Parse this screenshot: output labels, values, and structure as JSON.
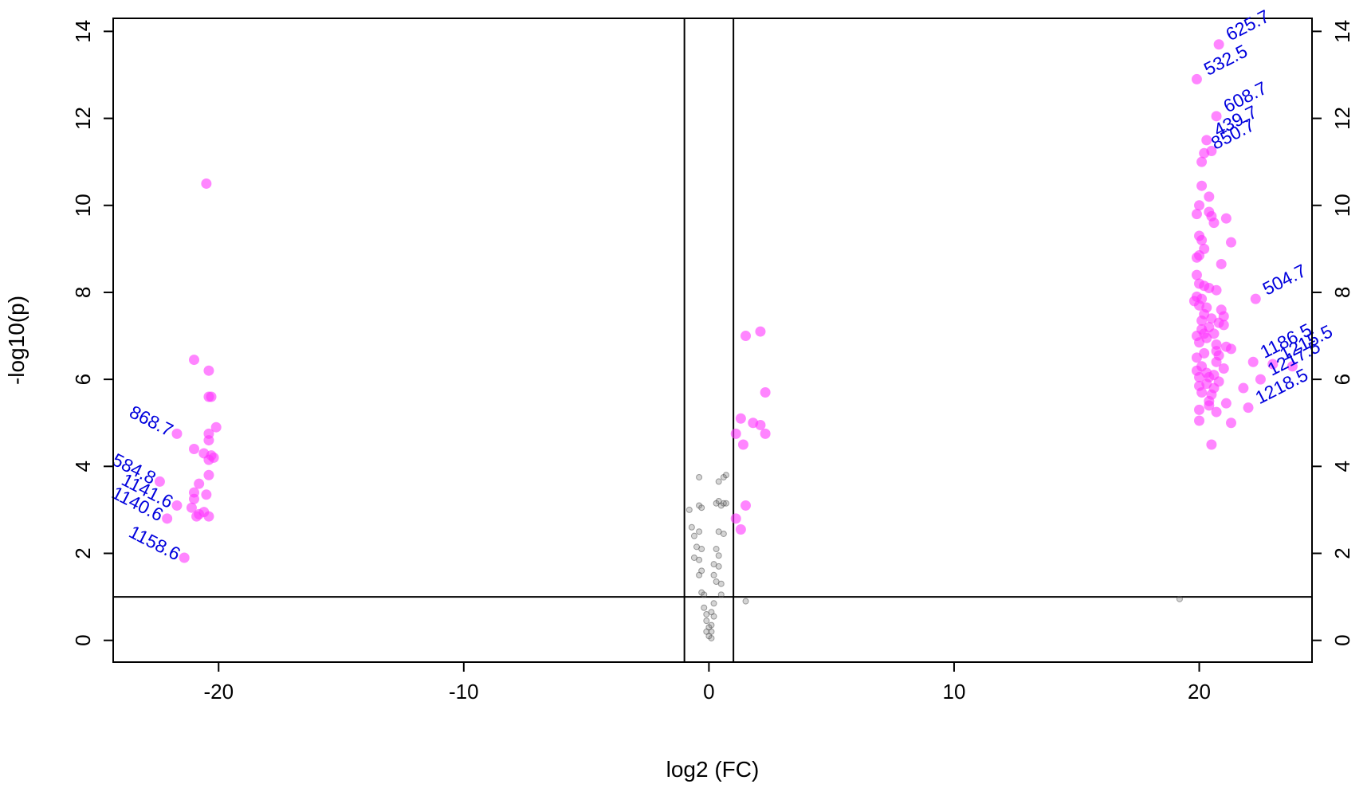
{
  "chart_data": {
    "type": "scatter",
    "title": "",
    "xlabel": "log2 (FC)",
    "ylabel": "-log10(p)",
    "xlim": [
      -24.3,
      24.6
    ],
    "ylim": [
      -0.5,
      14.3
    ],
    "x_ticks": [
      -20,
      -10,
      0,
      10,
      20
    ],
    "y_ticks": [
      0,
      2,
      4,
      6,
      8,
      10,
      12,
      14
    ],
    "x_tick_labels": [
      "-20",
      "-10",
      "0",
      "10",
      "20"
    ],
    "y_tick_labels": [
      "0",
      "2",
      "4",
      "6",
      "8",
      "10",
      "12",
      "14"
    ],
    "threshold_lines": {
      "vertical": [
        -1,
        1
      ],
      "horizontal": [
        1
      ]
    },
    "grid": false,
    "legend": "none",
    "colors": {
      "significant": "#ff33ff",
      "not_significant": "#555555",
      "annotation": "#0000dd",
      "frame": "#000000"
    },
    "series": [
      {
        "color": "#ff33ff",
        "points": [
          [
            -20.5,
            10.5
          ],
          [
            -21.0,
            6.45
          ],
          [
            -20.4,
            6.2
          ],
          [
            -20.4,
            5.6
          ],
          [
            -20.3,
            5.6
          ],
          [
            -20.1,
            4.9
          ],
          [
            -20.4,
            4.75
          ],
          [
            -20.4,
            4.6
          ],
          [
            -21.0,
            4.4
          ],
          [
            -20.6,
            4.3
          ],
          [
            -20.3,
            4.25
          ],
          [
            -20.2,
            4.2
          ],
          [
            -20.4,
            4.15
          ],
          [
            -20.4,
            3.8
          ],
          [
            -21.7,
            4.75
          ],
          [
            -22.4,
            3.65
          ],
          [
            -20.8,
            3.6
          ],
          [
            -21.0,
            3.4
          ],
          [
            -20.5,
            3.35
          ],
          [
            -21.0,
            3.25
          ],
          [
            -21.7,
            3.1
          ],
          [
            -21.1,
            3.05
          ],
          [
            -20.6,
            2.95
          ],
          [
            -20.8,
            2.9
          ],
          [
            -20.9,
            2.85
          ],
          [
            -20.4,
            2.85
          ],
          [
            -22.1,
            2.8
          ],
          [
            -21.4,
            1.9
          ],
          [
            1.5,
            7.0
          ],
          [
            2.1,
            7.1
          ],
          [
            2.3,
            5.7
          ],
          [
            1.3,
            5.1
          ],
          [
            1.8,
            5.0
          ],
          [
            2.1,
            4.95
          ],
          [
            2.3,
            4.75
          ],
          [
            1.1,
            4.75
          ],
          [
            1.4,
            4.5
          ],
          [
            1.5,
            3.1
          ],
          [
            1.1,
            2.8
          ],
          [
            1.3,
            2.55
          ],
          [
            20.8,
            13.7
          ],
          [
            19.9,
            12.9
          ],
          [
            20.7,
            12.05
          ],
          [
            20.1,
            11.0
          ],
          [
            20.3,
            11.5
          ],
          [
            20.2,
            11.2
          ],
          [
            20.5,
            11.25
          ],
          [
            20.1,
            10.45
          ],
          [
            20.4,
            10.2
          ],
          [
            20.0,
            10.0
          ],
          [
            20.4,
            9.85
          ],
          [
            19.9,
            9.8
          ],
          [
            20.5,
            9.75
          ],
          [
            21.1,
            9.7
          ],
          [
            20.6,
            9.6
          ],
          [
            20.0,
            9.3
          ],
          [
            20.1,
            9.2
          ],
          [
            21.3,
            9.15
          ],
          [
            20.2,
            9.0
          ],
          [
            20.0,
            8.85
          ],
          [
            19.9,
            8.8
          ],
          [
            20.9,
            8.65
          ],
          [
            19.9,
            8.4
          ],
          [
            20.0,
            8.2
          ],
          [
            20.2,
            8.15
          ],
          [
            20.4,
            8.1
          ],
          [
            20.7,
            8.05
          ],
          [
            19.9,
            7.9
          ],
          [
            20.1,
            7.85
          ],
          [
            22.3,
            7.85
          ],
          [
            19.8,
            7.8
          ],
          [
            20.0,
            7.7
          ],
          [
            20.3,
            7.65
          ],
          [
            20.9,
            7.6
          ],
          [
            20.2,
            7.5
          ],
          [
            21.0,
            7.45
          ],
          [
            20.5,
            7.4
          ],
          [
            20.1,
            7.35
          ],
          [
            20.8,
            7.3
          ],
          [
            21.0,
            7.25
          ],
          [
            20.4,
            7.2
          ],
          [
            20.1,
            7.15
          ],
          [
            20.2,
            7.05
          ],
          [
            20.6,
            7.05
          ],
          [
            19.9,
            7.0
          ],
          [
            20.3,
            6.95
          ],
          [
            20.0,
            6.85
          ],
          [
            20.7,
            6.8
          ],
          [
            21.1,
            6.75
          ],
          [
            20.7,
            6.65
          ],
          [
            21.3,
            6.7
          ],
          [
            20.2,
            6.6
          ],
          [
            20.8,
            6.55
          ],
          [
            19.9,
            6.5
          ],
          [
            22.2,
            6.4
          ],
          [
            20.7,
            6.4
          ],
          [
            23.0,
            6.35
          ],
          [
            20.1,
            6.3
          ],
          [
            21.0,
            6.25
          ],
          [
            23.8,
            6.3
          ],
          [
            19.9,
            6.2
          ],
          [
            20.3,
            6.15
          ],
          [
            20.6,
            6.1
          ],
          [
            20.0,
            6.05
          ],
          [
            20.4,
            6.05
          ],
          [
            22.5,
            6.0
          ],
          [
            20.8,
            5.95
          ],
          [
            20.3,
            5.9
          ],
          [
            20.0,
            5.85
          ],
          [
            20.6,
            5.8
          ],
          [
            21.8,
            5.8
          ],
          [
            20.1,
            5.7
          ],
          [
            20.5,
            5.65
          ],
          [
            20.4,
            5.5
          ],
          [
            21.1,
            5.45
          ],
          [
            20.4,
            5.4
          ],
          [
            22.0,
            5.35
          ],
          [
            20.0,
            5.3
          ],
          [
            20.7,
            5.25
          ],
          [
            20.0,
            5.05
          ],
          [
            21.3,
            5.0
          ],
          [
            20.5,
            4.5
          ]
        ]
      },
      {
        "color": "#555555",
        "points": [
          [
            -0.4,
            3.75
          ],
          [
            0.6,
            3.75
          ],
          [
            0.7,
            3.8
          ],
          [
            0.4,
            3.65
          ],
          [
            -0.8,
            3.0
          ],
          [
            -0.4,
            3.1
          ],
          [
            0.3,
            3.15
          ],
          [
            0.6,
            3.15
          ],
          [
            0.4,
            3.2
          ],
          [
            0.7,
            3.15
          ],
          [
            -0.3,
            3.05
          ],
          [
            0.5,
            3.1
          ],
          [
            -0.7,
            2.6
          ],
          [
            -0.6,
            2.4
          ],
          [
            -0.4,
            2.5
          ],
          [
            0.4,
            2.5
          ],
          [
            0.6,
            2.45
          ],
          [
            -0.5,
            2.15
          ],
          [
            -0.3,
            2.1
          ],
          [
            0.3,
            2.1
          ],
          [
            -0.6,
            1.9
          ],
          [
            -0.4,
            1.85
          ],
          [
            0.4,
            1.95
          ],
          [
            0.2,
            1.75
          ],
          [
            -0.4,
            1.5
          ],
          [
            -0.3,
            1.6
          ],
          [
            0.2,
            1.5
          ],
          [
            0.4,
            1.7
          ],
          [
            0.3,
            1.35
          ],
          [
            0.5,
            1.3
          ],
          [
            -0.3,
            1.1
          ],
          [
            -0.2,
            1.05
          ],
          [
            0.5,
            1.05
          ],
          [
            0.2,
            0.85
          ],
          [
            -0.2,
            0.75
          ],
          [
            0.1,
            0.65
          ],
          [
            -0.1,
            0.6
          ],
          [
            0.2,
            0.55
          ],
          [
            -0.1,
            0.45
          ],
          [
            0.1,
            0.35
          ],
          [
            0.0,
            0.3
          ],
          [
            -0.1,
            0.2
          ],
          [
            0.1,
            0.2
          ],
          [
            0.0,
            0.1
          ],
          [
            0.1,
            0.05
          ],
          [
            1.5,
            0.9
          ],
          [
            19.2,
            0.95
          ]
        ]
      }
    ],
    "annotations": [
      {
        "text": "625.7",
        "x": 20.8,
        "y": 13.7
      },
      {
        "text": "532.5",
        "x": 19.9,
        "y": 12.9
      },
      {
        "text": "608.7",
        "x": 20.7,
        "y": 12.05
      },
      {
        "text": "439.7",
        "x": 20.3,
        "y": 11.5
      },
      {
        "text": "850.7",
        "x": 20.2,
        "y": 11.2
      },
      {
        "text": "504.7",
        "x": 22.3,
        "y": 7.85
      },
      {
        "text": "1186.5",
        "x": 22.2,
        "y": 6.4
      },
      {
        "text": "1215.5",
        "x": 23.0,
        "y": 6.35
      },
      {
        "text": "1217.5",
        "x": 22.5,
        "y": 6.0
      },
      {
        "text": "1218.5",
        "x": 22.0,
        "y": 5.35
      },
      {
        "text": "868.7",
        "x": -21.7,
        "y": 4.75
      },
      {
        "text": "584.8",
        "x": -22.4,
        "y": 3.65
      },
      {
        "text": "1141.6",
        "x": -21.7,
        "y": 3.1
      },
      {
        "text": "1140.6",
        "x": -22.1,
        "y": 2.8
      },
      {
        "text": "1158.6",
        "x": -21.4,
        "y": 1.9
      }
    ]
  }
}
